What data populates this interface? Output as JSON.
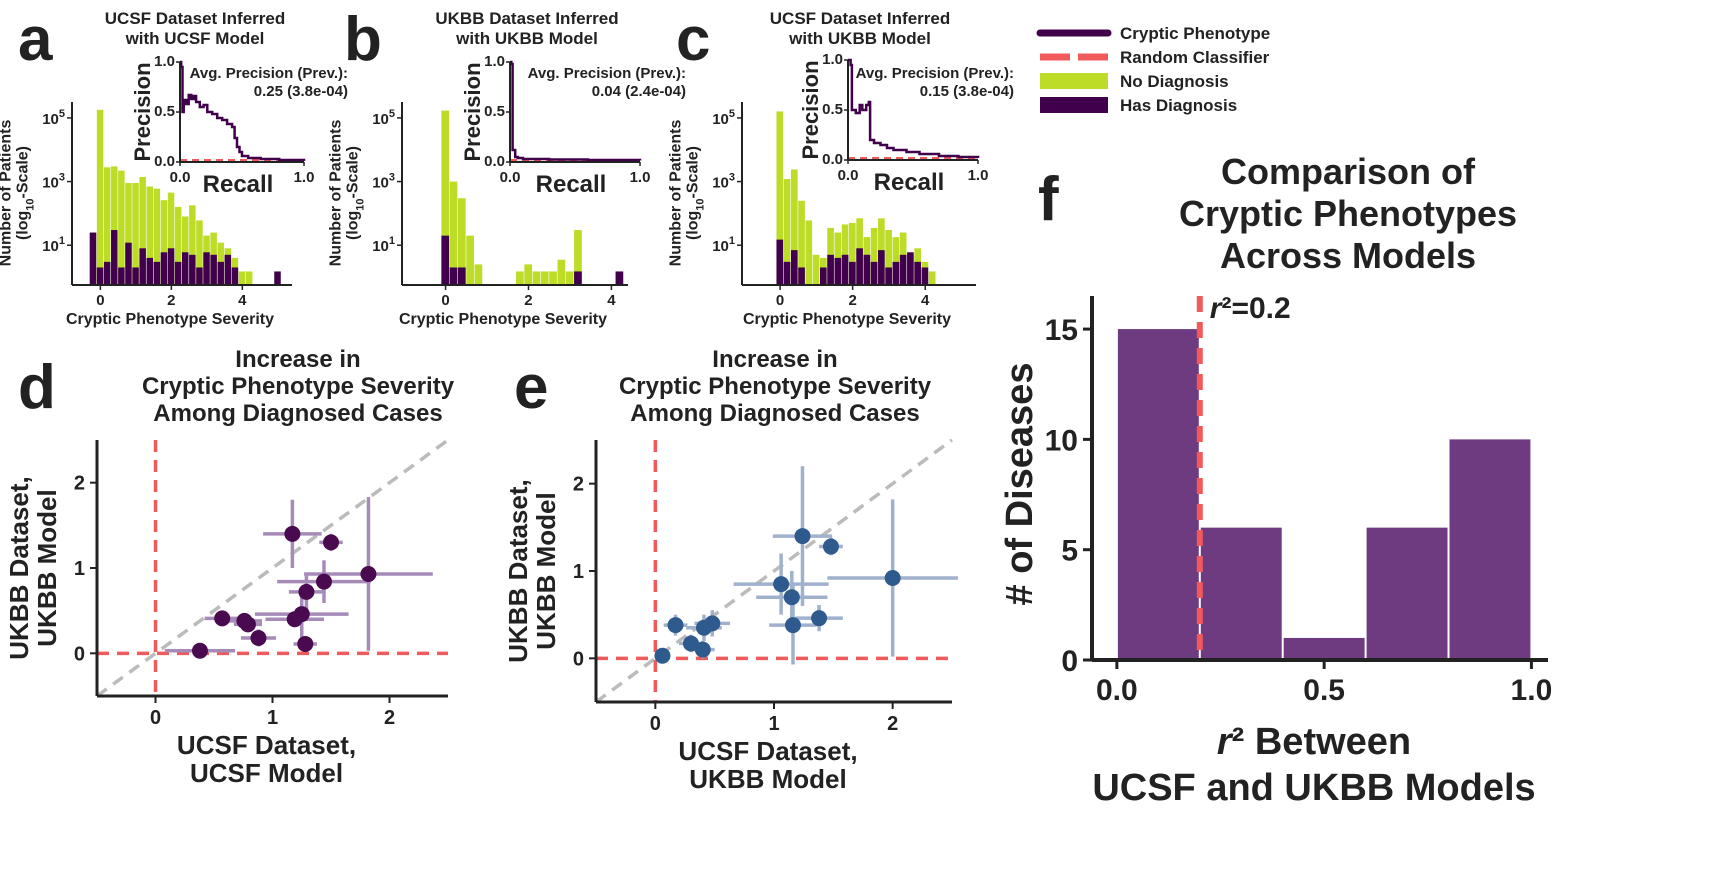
{
  "colors": {
    "purple": "#40004b",
    "red": "#f05a5a",
    "green": "#bcdc28",
    "grey": "#bbbbbb",
    "scatter_d": "#4a0a4f",
    "scatter_d_err": "#a68bb8",
    "scatter_e": "#2f5a8e",
    "scatter_e_err": "#9fb1cc",
    "hist_f": "#6e3a80"
  },
  "legend": {
    "items": [
      {
        "label": "Cryptic Phenotype",
        "kind": "line",
        "color": "#40004b"
      },
      {
        "label": "Random Classifier",
        "kind": "dash",
        "color": "#f05a5a"
      },
      {
        "label": "No Diagnosis",
        "kind": "patch",
        "color": "#bcdc28"
      },
      {
        "label": "Has Diagnosis",
        "kind": "patch",
        "color": "#40004b"
      }
    ]
  },
  "chart_data": [
    {
      "panel": "a",
      "type": "bar",
      "title": "UCSF Dataset Inferred\nwith UCSF Model",
      "xlabel": "Cryptic Phenotype Severity",
      "ylabel": "Number of Patients\n(log10-Scale)",
      "y_scale": "log",
      "x_ticks": [
        "0",
        "2",
        "4"
      ],
      "y_ticks": [
        "10^1",
        "10^3",
        "10^5"
      ],
      "xlim": [
        -0.8,
        5.4
      ],
      "ylim_log10": [
        -0.25,
        5.5
      ],
      "bin_width": 0.2,
      "bin_start": -0.3,
      "no_diagnosis": [
        25,
        180000,
        2800,
        3000,
        2200,
        900,
        900,
        1400,
        700,
        600,
        260,
        450,
        160,
        80,
        180,
        60,
        20,
        25,
        12,
        8,
        4,
        1.5,
        1.5
      ],
      "has_diagnosis": [
        25,
        2,
        3,
        30,
        2,
        12,
        2,
        8,
        4,
        3,
        6,
        8,
        3,
        6,
        5,
        2,
        6,
        5,
        3,
        5,
        2,
        0,
        0,
        0,
        0,
        0,
        1.5
      ],
      "inset": {
        "xlabel": "Recall",
        "ylabel": "Precision",
        "x_ticks": [
          "0.0",
          "1.0"
        ],
        "y_ticks": [
          "0.0",
          "0.5",
          "1.0"
        ],
        "annotation_label": "Avg. Precision (Prev.):",
        "annotation_value": "0.25 (3.8e-04)",
        "random_precision": 0.0004,
        "pr_curve": [
          [
            0.0,
            1.0
          ],
          [
            0.01,
            0.95
          ],
          [
            0.02,
            0.5
          ],
          [
            0.03,
            0.62
          ],
          [
            0.05,
            0.58
          ],
          [
            0.07,
            0.67
          ],
          [
            0.09,
            0.63
          ],
          [
            0.11,
            0.66
          ],
          [
            0.13,
            0.6
          ],
          [
            0.16,
            0.55
          ],
          [
            0.19,
            0.57
          ],
          [
            0.22,
            0.5
          ],
          [
            0.26,
            0.48
          ],
          [
            0.3,
            0.44
          ],
          [
            0.34,
            0.42
          ],
          [
            0.38,
            0.38
          ],
          [
            0.42,
            0.35
          ],
          [
            0.44,
            0.24
          ],
          [
            0.46,
            0.15
          ],
          [
            0.48,
            0.1
          ],
          [
            0.5,
            0.06
          ],
          [
            0.55,
            0.04
          ],
          [
            0.65,
            0.03
          ],
          [
            0.8,
            0.02
          ],
          [
            1.0,
            0.01
          ]
        ]
      }
    },
    {
      "panel": "b",
      "type": "bar",
      "title": "UKBB Dataset Inferred\nwith UKBB Model",
      "xlabel": "Cryptic Phenotype Severity",
      "ylabel": "Number of Patients\n(log10-Scale)",
      "y_scale": "log",
      "x_ticks": [
        "0",
        "2",
        "4"
      ],
      "y_ticks": [
        "10^1",
        "10^3",
        "10^5"
      ],
      "xlim": [
        -1.05,
        4.4
      ],
      "ylim_log10": [
        -0.25,
        5.5
      ],
      "bin_width": 0.2,
      "bin_start": -0.1,
      "no_diagnosis": [
        170000,
        1000,
        300,
        20,
        2.5,
        0,
        0,
        0,
        0,
        1.5,
        2.5,
        1.5,
        1.5,
        1.5,
        3.5,
        1.5,
        30
      ],
      "has_diagnosis": [
        20,
        2,
        2,
        0,
        0,
        0,
        0,
        0,
        0,
        0,
        0,
        0,
        0,
        0,
        0,
        0,
        1.5,
        0,
        0,
        0,
        0,
        1.5
      ],
      "inset": {
        "xlabel": "Recall",
        "ylabel": "Precision",
        "x_ticks": [
          "0.0",
          "1.0"
        ],
        "y_ticks": [
          "0.0",
          "0.5",
          "1.0"
        ],
        "annotation_label": "Avg. Precision (Prev.):",
        "annotation_value": "0.04 (2.4e-04)",
        "random_precision": 0.0002,
        "pr_curve": [
          [
            0.0,
            1.0
          ],
          [
            0.01,
            0.98
          ],
          [
            0.02,
            0.12
          ],
          [
            0.04,
            0.05
          ],
          [
            0.06,
            0.04
          ],
          [
            0.1,
            0.03
          ],
          [
            0.3,
            0.025
          ],
          [
            0.6,
            0.02
          ],
          [
            1.0,
            0.015
          ]
        ]
      }
    },
    {
      "panel": "c",
      "type": "bar",
      "title": "UCSF Dataset Inferred\nwith UKBB Model",
      "xlabel": "Cryptic Phenotype Severity",
      "ylabel": "Number of Patients\n(log10-Scale)",
      "y_scale": "log",
      "x_ticks": [
        "0",
        "2",
        "4"
      ],
      "y_ticks": [
        "10^1",
        "10^3",
        "10^5"
      ],
      "xlim": [
        -1.05,
        5.4
      ],
      "ylim_log10": [
        -0.25,
        5.5
      ],
      "bin_width": 0.2,
      "bin_start": -0.1,
      "no_diagnosis": [
        160000,
        1200,
        2400,
        250,
        60,
        5,
        4,
        35,
        25,
        45,
        50,
        70,
        18,
        35,
        70,
        30,
        18,
        25,
        5,
        8,
        3,
        1.5
      ],
      "has_diagnosis": [
        15,
        3,
        7,
        2,
        0,
        0,
        2,
        5,
        4,
        5,
        3,
        8,
        5,
        3,
        7,
        2,
        3,
        5,
        6,
        3,
        2
      ],
      "inset": {
        "xlabel": "Recall",
        "ylabel": "Precision",
        "x_ticks": [
          "0.0",
          "1.0"
        ],
        "y_ticks": [
          "0.0",
          "0.5",
          "1.0"
        ],
        "annotation_label": "Avg. Precision (Prev.):",
        "annotation_value": "0.15 (3.8e-04)",
        "random_precision": 0.0004,
        "pr_curve": [
          [
            0.0,
            1.0
          ],
          [
            0.02,
            0.95
          ],
          [
            0.03,
            0.5
          ],
          [
            0.06,
            0.47
          ],
          [
            0.09,
            0.55
          ],
          [
            0.11,
            0.5
          ],
          [
            0.14,
            0.55
          ],
          [
            0.16,
            0.58
          ],
          [
            0.17,
            0.2
          ],
          [
            0.2,
            0.17
          ],
          [
            0.25,
            0.15
          ],
          [
            0.3,
            0.12
          ],
          [
            0.35,
            0.1
          ],
          [
            0.45,
            0.08
          ],
          [
            0.55,
            0.06
          ],
          [
            0.7,
            0.04
          ],
          [
            0.85,
            0.03
          ],
          [
            1.0,
            0.02
          ]
        ]
      }
    },
    {
      "panel": "d",
      "type": "scatter",
      "title": "Increase in\nCryptic Phenotype Severity\nAmong Diagnosed Cases",
      "xlabel": "UCSF Dataset,\nUCSF Model",
      "ylabel": "UKBB Dataset,\nUKBB Model",
      "xlim": [
        -0.5,
        2.5
      ],
      "ylim": [
        -0.5,
        2.5
      ],
      "x_ticks": [
        "0",
        "1",
        "2"
      ],
      "y_ticks": [
        "0",
        "1",
        "2"
      ],
      "points": [
        {
          "x": 0.38,
          "y": 0.03,
          "xerr": 0.3,
          "yerr": 0.03
        },
        {
          "x": 0.57,
          "y": 0.41,
          "xerr": 0.15,
          "yerr": 0.07
        },
        {
          "x": 0.76,
          "y": 0.38,
          "xerr": 0.15,
          "yerr": 0.07
        },
        {
          "x": 0.79,
          "y": 0.34,
          "xerr": 0.12,
          "yerr": 0.07
        },
        {
          "x": 0.88,
          "y": 0.18,
          "xerr": 0.15,
          "yerr": 0.1
        },
        {
          "x": 1.17,
          "y": 1.4,
          "xerr": 0.25,
          "yerr": 0.4
        },
        {
          "x": 1.19,
          "y": 0.4,
          "xerr": 0.25,
          "yerr": 0.08
        },
        {
          "x": 1.25,
          "y": 0.46,
          "xerr": 0.4,
          "yerr": 0.3
        },
        {
          "x": 1.28,
          "y": 0.11,
          "xerr": 0.1,
          "yerr": 0.08
        },
        {
          "x": 1.29,
          "y": 0.72,
          "xerr": 0.15,
          "yerr": 0.2
        },
        {
          "x": 1.44,
          "y": 0.84,
          "xerr": 0.4,
          "yerr": 0.25
        },
        {
          "x": 1.5,
          "y": 1.3,
          "xerr": 0.1,
          "yerr": 0.1
        },
        {
          "x": 1.82,
          "y": 0.93,
          "xerr": 0.55,
          "yerr": 0.9
        }
      ]
    },
    {
      "panel": "e",
      "type": "scatter",
      "title": "Increase in\nCryptic Phenotype Severity\nAmong Diagnosed Cases",
      "xlabel": "UCSF Dataset,\nUKBB Model",
      "ylabel": "UKBB Dataset,\nUKBB Model",
      "xlim": [
        -0.5,
        2.5
      ],
      "ylim": [
        -0.5,
        2.5
      ],
      "x_ticks": [
        "0",
        "1",
        "2"
      ],
      "y_ticks": [
        "0",
        "1",
        "2"
      ],
      "points": [
        {
          "x": 0.06,
          "y": 0.03,
          "xerr": 0.05,
          "yerr": 0.03
        },
        {
          "x": 0.17,
          "y": 0.38,
          "xerr": 0.1,
          "yerr": 0.12
        },
        {
          "x": 0.3,
          "y": 0.17,
          "xerr": 0.1,
          "yerr": 0.1
        },
        {
          "x": 0.4,
          "y": 0.1,
          "xerr": 0.1,
          "yerr": 0.1
        },
        {
          "x": 0.41,
          "y": 0.35,
          "xerr": 0.15,
          "yerr": 0.15
        },
        {
          "x": 0.48,
          "y": 0.4,
          "xerr": 0.15,
          "yerr": 0.15
        },
        {
          "x": 1.06,
          "y": 0.85,
          "xerr": 0.4,
          "yerr": 0.35
        },
        {
          "x": 1.15,
          "y": 0.7,
          "xerr": 0.3,
          "yerr": 0.3
        },
        {
          "x": 1.16,
          "y": 0.38,
          "xerr": 0.2,
          "yerr": 0.45
        },
        {
          "x": 1.24,
          "y": 1.4,
          "xerr": 0.25,
          "yerr": 0.8
        },
        {
          "x": 1.38,
          "y": 0.46,
          "xerr": 0.2,
          "yerr": 0.15
        },
        {
          "x": 1.48,
          "y": 1.28,
          "xerr": 0.1,
          "yerr": 0.1
        },
        {
          "x": 2.0,
          "y": 0.92,
          "xerr": 0.55,
          "yerr": 0.9
        }
      ]
    },
    {
      "panel": "f",
      "type": "bar",
      "title": "Comparison of\nCryptic Phenotypes\nAcross Models",
      "xlabel": "r² Between\nUCSF and UKBB Models",
      "ylabel": "# of Diseases",
      "xlim": [
        -0.06,
        1.04
      ],
      "ylim": [
        0,
        16.5
      ],
      "x_ticks": [
        "0.0",
        "0.5",
        "1.0"
      ],
      "y_ticks": [
        "0",
        "5",
        "10",
        "15"
      ],
      "bin_edges": [
        0.0,
        0.2,
        0.4,
        0.6,
        0.8,
        1.0
      ],
      "values": [
        15,
        6,
        1,
        6,
        10
      ],
      "threshold": 0.2,
      "threshold_label": "r²=0.2"
    }
  ]
}
